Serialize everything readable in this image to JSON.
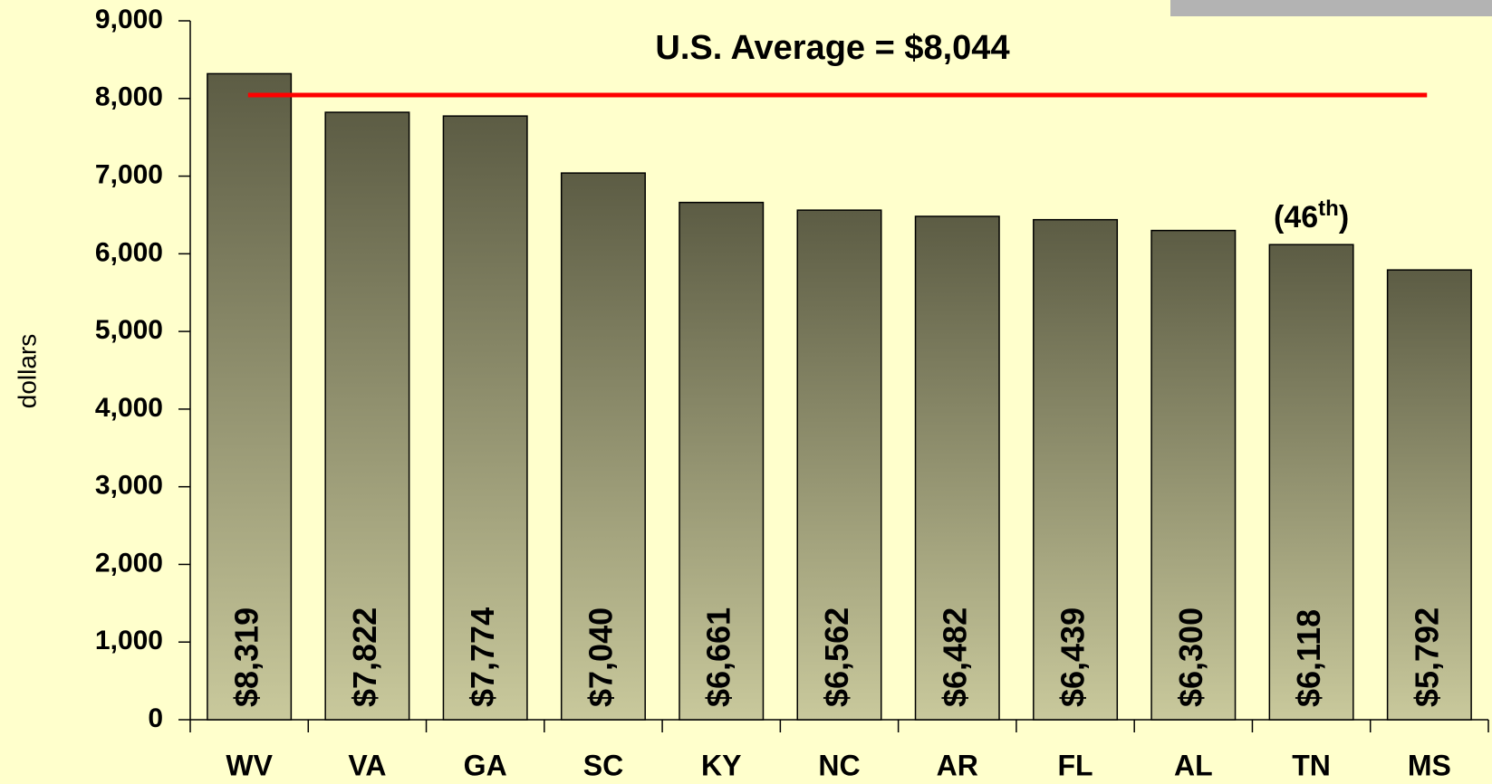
{
  "chart_data": {
    "type": "bar",
    "y_axis_label": "dollars",
    "categories": [
      "WV",
      "VA",
      "GA",
      "SC",
      "KY",
      "NC",
      "AR",
      "FL",
      "AL",
      "TN",
      "MS"
    ],
    "values": [
      8319,
      7822,
      7774,
      7040,
      6661,
      6562,
      6482,
      6439,
      6300,
      6118,
      5792
    ],
    "value_labels": [
      "$8,319",
      "$7,822",
      "$7,774",
      "$7,040",
      "$6,661",
      "$6,562",
      "$6,482",
      "$6,439",
      "$6,300",
      "$6,118",
      "$5,792"
    ],
    "ylim": [
      0,
      9000
    ],
    "yticks": [
      0,
      {
        "value": 1000,
        "label": "1,000"
      },
      {
        "value": 2000,
        "label": "2,000"
      },
      {
        "value": 3000,
        "label": "3,000"
      },
      {
        "value": 4000,
        "label": "4,000"
      },
      {
        "value": 5000,
        "label": "5,000"
      },
      {
        "value": 6000,
        "label": "6,000"
      },
      {
        "value": 7000,
        "label": "7,000"
      },
      {
        "value": 8000,
        "label": "8,000"
      },
      {
        "value": 9000,
        "label": "9,000"
      }
    ],
    "reference_line": {
      "value": 8044,
      "label": "U.S. Average = $8,044",
      "color": "#ff0000"
    },
    "annotations": [
      {
        "category": "TN",
        "text": [
          "(46",
          "th",
          ")"
        ]
      }
    ],
    "bar_gradient": [
      "#5c5c44",
      "#c9c99c"
    ]
  }
}
